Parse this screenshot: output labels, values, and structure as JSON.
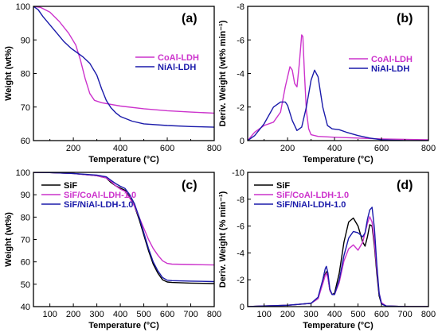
{
  "chart_data": [
    {
      "id": "a",
      "type": "line",
      "panel_label": "(a)",
      "xlabel": "Temperature (°C)",
      "ylabel": "Weight (wt%)",
      "xlim": [
        30,
        800
      ],
      "ylim": [
        60,
        100
      ],
      "xticks": [
        "200",
        "400",
        "600",
        "800"
      ],
      "yticks": [
        "60",
        "70",
        "80",
        "90",
        "100"
      ],
      "legend_position": "top-right",
      "series": [
        {
          "name": "CoAl-LDH",
          "color": "#cc33cc",
          "x": [
            30,
            60,
            100,
            140,
            180,
            210,
            230,
            250,
            270,
            290,
            320,
            400,
            500,
            600,
            700,
            800
          ],
          "y": [
            100,
            99.7,
            98.3,
            95.5,
            92,
            88.5,
            84,
            78.5,
            74,
            72,
            71.3,
            70.3,
            69.5,
            68.9,
            68.5,
            68.2
          ]
        },
        {
          "name": "NiAl-LDH",
          "color": "#1a1aaa",
          "x": [
            30,
            50,
            70,
            100,
            130,
            160,
            190,
            210,
            240,
            270,
            300,
            320,
            340,
            360,
            380,
            400,
            450,
            500,
            600,
            700,
            800
          ],
          "y": [
            100,
            99,
            97,
            94.5,
            92,
            89.5,
            87.5,
            86.5,
            85,
            83,
            79.5,
            75.5,
            72,
            69.8,
            68.3,
            67.2,
            65.8,
            65,
            64.5,
            64.2,
            64
          ]
        }
      ]
    },
    {
      "id": "b",
      "type": "line",
      "panel_label": "(b)",
      "xlabel": "Temperature (°C)",
      "ylabel": "Deriv. Weight (wt% min⁻¹)",
      "xlim": [
        30,
        800
      ],
      "ylim": [
        0,
        -8
      ],
      "xticks": [
        "200",
        "400",
        "600",
        "800"
      ],
      "yticks": [
        "0",
        "-2",
        "-4",
        "-6",
        "-8"
      ],
      "legend_position": "top-right",
      "series": [
        {
          "name": "CoAl-LDH",
          "color": "#cc33cc",
          "x": [
            30,
            60,
            100,
            140,
            170,
            190,
            210,
            220,
            230,
            240,
            250,
            260,
            265,
            272,
            280,
            290,
            300,
            330,
            400,
            500,
            600,
            800
          ],
          "y": [
            0,
            -0.5,
            -0.9,
            -1.1,
            -1.7,
            -3.2,
            -4.4,
            -4.2,
            -3.4,
            -3.2,
            -4.6,
            -6.3,
            -6.2,
            -4,
            -1.8,
            -0.7,
            -0.35,
            -0.25,
            -0.2,
            -0.15,
            -0.1,
            -0.05
          ]
        },
        {
          "name": "NiAl-LDH",
          "color": "#1a1aaa",
          "x": [
            30,
            60,
            100,
            140,
            170,
            190,
            200,
            220,
            240,
            260,
            280,
            300,
            315,
            330,
            350,
            370,
            390,
            420,
            450,
            500,
            550,
            600,
            700,
            800
          ],
          "y": [
            0,
            -0.3,
            -1.0,
            -2.0,
            -2.3,
            -2.3,
            -2.1,
            -1.2,
            -0.6,
            -0.8,
            -2.0,
            -3.6,
            -4.2,
            -3.8,
            -2.0,
            -0.9,
            -0.7,
            -0.65,
            -0.5,
            -0.3,
            -0.15,
            -0.05,
            0,
            0
          ]
        }
      ]
    },
    {
      "id": "c",
      "type": "line",
      "panel_label": "(c)",
      "xlabel": "Temperature (°C)",
      "ylabel": "Weight (wt%)",
      "xlim": [
        30,
        800
      ],
      "ylim": [
        40,
        100
      ],
      "xticks": [
        "100",
        "200",
        "300",
        "400",
        "500",
        "600",
        "700",
        "800"
      ],
      "yticks": [
        "40",
        "50",
        "60",
        "70",
        "80",
        "90",
        "100"
      ],
      "legend_position": "top-left",
      "series": [
        {
          "name": "SiF",
          "color": "#000000",
          "x": [
            30,
            100,
            200,
            300,
            340,
            360,
            380,
            400,
            420,
            440,
            460,
            480,
            500,
            520,
            540,
            560,
            580,
            600,
            620,
            700,
            800
          ],
          "y": [
            100,
            99.9,
            99.5,
            98.5,
            97.5,
            95.5,
            94,
            93,
            92,
            89,
            85,
            79,
            72,
            65,
            59,
            55,
            52,
            51,
            50.8,
            50.5,
            50.3
          ]
        },
        {
          "name": "SiF/CoAl-LDH-1.0",
          "color": "#cc33cc",
          "x": [
            30,
            100,
            200,
            300,
            340,
            360,
            380,
            400,
            420,
            440,
            460,
            480,
            500,
            520,
            540,
            560,
            580,
            600,
            620,
            700,
            800
          ],
          "y": [
            100,
            99.9,
            99.5,
            98.5,
            97.5,
            96,
            94,
            92.5,
            91.5,
            88.5,
            85,
            80,
            75,
            70,
            66,
            63,
            60.5,
            59.3,
            59,
            58.8,
            58.6
          ]
        },
        {
          "name": "SiF/NiAl-LDH-1.0",
          "color": "#1a1aaa",
          "x": [
            30,
            100,
            200,
            300,
            340,
            360,
            380,
            400,
            420,
            440,
            460,
            480,
            500,
            520,
            540,
            560,
            580,
            600,
            620,
            700,
            800
          ],
          "y": [
            100,
            99.9,
            99.5,
            98.8,
            98,
            96.5,
            95,
            93.8,
            92.8,
            90,
            86,
            80,
            73,
            66,
            60,
            56,
            53,
            51.8,
            51.6,
            51.4,
            51.2
          ]
        }
      ]
    },
    {
      "id": "d",
      "type": "line",
      "panel_label": "(d)",
      "xlabel": "Temperature (°C)",
      "ylabel": "Deriv. Weight (% min⁻¹)",
      "xlim": [
        30,
        800
      ],
      "ylim": [
        0,
        -10
      ],
      "xticks": [
        "100",
        "200",
        "300",
        "400",
        "500",
        "600",
        "700",
        "800"
      ],
      "yticks": [
        "0",
        "-2",
        "-4",
        "-6",
        "-8",
        "-10"
      ],
      "legend_position": "top-left",
      "series": [
        {
          "name": "SiF",
          "color": "#000000",
          "x": [
            30,
            100,
            200,
            300,
            330,
            350,
            360,
            365,
            372,
            380,
            390,
            400,
            420,
            440,
            460,
            480,
            500,
            520,
            530,
            540,
            550,
            560,
            570,
            580,
            590,
            600,
            620,
            700,
            800
          ],
          "y": [
            0,
            -0.05,
            -0.1,
            -0.25,
            -0.6,
            -1.8,
            -2.4,
            -2.6,
            -2.2,
            -1.2,
            -0.9,
            -1.0,
            -2.5,
            -4.8,
            -6.3,
            -6.6,
            -6.0,
            -4.8,
            -4.5,
            -5.2,
            -6.1,
            -6.0,
            -4.5,
            -2.5,
            -0.8,
            -0.2,
            -0.05,
            0,
            0
          ]
        },
        {
          "name": "SiF/CoAl-LDH-1.0",
          "color": "#cc33cc",
          "x": [
            30,
            100,
            200,
            300,
            330,
            350,
            360,
            365,
            372,
            380,
            390,
            400,
            420,
            440,
            460,
            480,
            500,
            520,
            530,
            540,
            550,
            560,
            570,
            580,
            590,
            600,
            620,
            700,
            800
          ],
          "y": [
            0,
            -0.05,
            -0.1,
            -0.25,
            -0.6,
            -1.7,
            -2.3,
            -2.5,
            -2.1,
            -1.2,
            -0.9,
            -0.9,
            -1.8,
            -3.4,
            -4.3,
            -4.6,
            -4.2,
            -4.8,
            -5.5,
            -6.2,
            -6.7,
            -6.3,
            -4.8,
            -2.8,
            -1.0,
            -0.3,
            -0.05,
            0,
            0
          ]
        },
        {
          "name": "SiF/NiAl-LDH-1.0",
          "color": "#1a1aaa",
          "x": [
            30,
            100,
            200,
            300,
            330,
            350,
            360,
            365,
            372,
            380,
            390,
            400,
            420,
            440,
            460,
            480,
            500,
            520,
            530,
            540,
            550,
            560,
            570,
            580,
            590,
            600,
            620,
            700,
            800
          ],
          "y": [
            0,
            -0.05,
            -0.1,
            -0.25,
            -0.7,
            -2.0,
            -2.8,
            -3.0,
            -2.5,
            -1.3,
            -0.9,
            -0.9,
            -2.0,
            -3.8,
            -5.1,
            -5.6,
            -5.5,
            -5.2,
            -5.5,
            -6.5,
            -7.2,
            -7.4,
            -5.8,
            -3.2,
            -1.0,
            -0.2,
            -0.05,
            0,
            0
          ]
        }
      ]
    }
  ]
}
